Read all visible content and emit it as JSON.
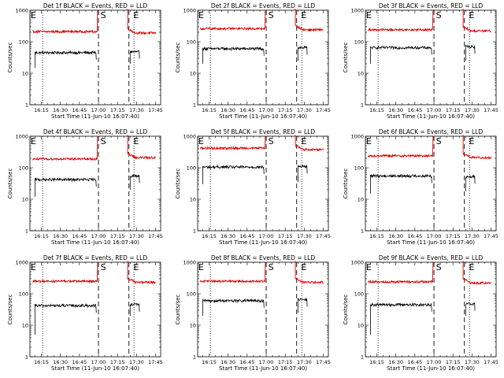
{
  "chart_data": [
    {
      "type": "line",
      "title": "Det 1f BLACK = Events, RED = LLD",
      "xlabel": "Start Time (11-Jun-10 16:07:40)",
      "ylabel": "Counts/sec",
      "xticks": [
        "16:15",
        "16:30",
        "16:45",
        "17:00",
        "17:15",
        "17:30",
        "17:45"
      ],
      "yscale": "log",
      "ylim": [
        1,
        1000
      ],
      "yticks": [
        "1",
        "10",
        "100",
        "1000"
      ],
      "markers": [
        {
          "label": "E",
          "time": "16:06"
        },
        {
          "label": "S",
          "time": "17:01"
        },
        {
          "label": "E",
          "time": "17:27"
        }
      ],
      "series": [
        {
          "color": "#000000",
          "segments": [
            {
              "x": [
                "16:10",
                "16:58"
              ],
              "level": 45,
              "start": 15
            },
            {
              "x": [
                "17:25",
                "17:32"
              ],
              "level": 48,
              "start": 20
            }
          ]
        },
        {
          "color": "#e00000",
          "segments": [
            {
              "x": [
                "16:08",
                "16:59"
              ],
              "level": 210,
              "rise": 1100
            },
            {
              "x": [
                "17:23",
                "17:45"
              ],
              "level": 190,
              "start": 1100
            }
          ]
        }
      ]
    },
    {
      "type": "line",
      "title": "Det 2f BLACK = Events, RED = LLD",
      "xlabel": "Start Time (11-Jun-10 16:07:40)",
      "ylabel": "Counts/sec",
      "xticks": [
        "16:15",
        "16:30",
        "16:45",
        "17:00",
        "17:15",
        "17:30",
        "17:45"
      ],
      "yscale": "log",
      "ylim": [
        1,
        1000
      ],
      "yticks": [
        "1",
        "10",
        "100",
        "1000"
      ],
      "markers": [
        {
          "label": "E",
          "time": "16:06"
        },
        {
          "label": "S",
          "time": "17:01"
        },
        {
          "label": "E",
          "time": "17:27"
        }
      ],
      "series": [
        {
          "color": "#000000",
          "segments": [
            {
              "x": [
                "16:10",
                "16:58"
              ],
              "level": 60,
              "start": 20
            },
            {
              "x": [
                "17:25",
                "17:32"
              ],
              "level": 65,
              "start": 25
            }
          ]
        },
        {
          "color": "#e00000",
          "segments": [
            {
              "x": [
                "16:08",
                "16:59"
              ],
              "level": 260,
              "rise": 1100
            },
            {
              "x": [
                "17:23",
                "17:45"
              ],
              "level": 240,
              "start": 1100
            }
          ]
        }
      ]
    },
    {
      "type": "line",
      "title": "Det 3f BLACK = Events, RED = LLD",
      "xlabel": "Start Time (11-Jun-10 16:07:40)",
      "ylabel": "Counts/sec",
      "xticks": [
        "16:15",
        "16:30",
        "16:45",
        "17:00",
        "17:15",
        "17:30",
        "17:45"
      ],
      "yscale": "log",
      "ylim": [
        1,
        1000
      ],
      "yticks": [
        "1",
        "10",
        "100",
        "1000"
      ],
      "markers": [
        {
          "label": "E",
          "time": "16:06"
        },
        {
          "label": "S",
          "time": "17:01"
        },
        {
          "label": "E",
          "time": "17:27"
        }
      ],
      "series": [
        {
          "color": "#000000",
          "segments": [
            {
              "x": [
                "16:10",
                "16:58"
              ],
              "level": 65,
              "start": 20
            },
            {
              "x": [
                "17:25",
                "17:32"
              ],
              "level": 70,
              "start": 25
            }
          ]
        },
        {
          "color": "#e00000",
          "segments": [
            {
              "x": [
                "16:08",
                "16:59"
              ],
              "level": 240,
              "rise": 1100
            },
            {
              "x": [
                "17:23",
                "17:45"
              ],
              "level": 220,
              "start": 1100
            }
          ]
        }
      ]
    },
    {
      "type": "line",
      "title": "Det 4f BLACK = Events, RED = LLD",
      "xlabel": "Start Time (11-Jun-10 16:07:40)",
      "ylabel": "Counts/sec",
      "xticks": [
        "16:15",
        "16:30",
        "16:45",
        "17:00",
        "17:15",
        "17:30",
        "17:45"
      ],
      "yscale": "log",
      "ylim": [
        1,
        1000
      ],
      "yticks": [
        "1",
        "10",
        "100",
        "1000"
      ],
      "markers": [
        {
          "label": "E",
          "time": "16:06"
        },
        {
          "label": "S",
          "time": "17:01"
        },
        {
          "label": "E",
          "time": "17:27"
        }
      ],
      "series": [
        {
          "color": "#000000",
          "segments": [
            {
              "x": [
                "16:10",
                "16:58"
              ],
              "level": 42,
              "start": 12
            },
            {
              "x": [
                "17:25",
                "17:32"
              ],
              "level": 55,
              "start": 20
            }
          ]
        },
        {
          "color": "#e00000",
          "segments": [
            {
              "x": [
                "16:08",
                "16:59"
              ],
              "level": 190,
              "rise": 1100
            },
            {
              "x": [
                "17:23",
                "17:45"
              ],
              "level": 210,
              "start": 1100
            }
          ]
        }
      ]
    },
    {
      "type": "line",
      "title": "Det 5f BLACK = Events, RED = LLD",
      "xlabel": "Start Time (11-Jun-10 16:07:40)",
      "ylabel": "Counts/sec",
      "xticks": [
        "16:15",
        "16:30",
        "16:45",
        "17:00",
        "17:15",
        "17:30",
        "17:45"
      ],
      "yscale": "log",
      "ylim": [
        1,
        1000
      ],
      "yticks": [
        "1",
        "10",
        "100",
        "1000"
      ],
      "markers": [
        {
          "label": "E",
          "time": "16:06"
        },
        {
          "label": "S",
          "time": "17:01"
        },
        {
          "label": "E",
          "time": "17:27"
        }
      ],
      "series": [
        {
          "color": "#000000",
          "segments": [
            {
              "x": [
                "16:10",
                "16:58"
              ],
              "level": 105,
              "start": 30
            },
            {
              "x": [
                "17:25",
                "17:32"
              ],
              "level": 110,
              "start": 35
            }
          ]
        },
        {
          "color": "#e00000",
          "segments": [
            {
              "x": [
                "16:08",
                "16:59"
              ],
              "level": 420,
              "rise": 1100
            },
            {
              "x": [
                "17:23",
                "17:45"
              ],
              "level": 380,
              "start": 1100
            }
          ]
        }
      ]
    },
    {
      "type": "line",
      "title": "Det 6f BLACK = Events, RED = LLD",
      "xlabel": "Start Time (11-Jun-10 16:07:40)",
      "ylabel": "Counts/sec",
      "xticks": [
        "16:15",
        "16:30",
        "16:45",
        "17:00",
        "17:15",
        "17:30",
        "17:45"
      ],
      "yscale": "log",
      "ylim": [
        1,
        1000
      ],
      "yticks": [
        "1",
        "10",
        "100",
        "1000"
      ],
      "markers": [
        {
          "label": "E",
          "time": "16:06"
        },
        {
          "label": "S",
          "time": "17:01"
        },
        {
          "label": "E",
          "time": "17:27"
        }
      ],
      "series": [
        {
          "color": "#000000",
          "segments": [
            {
              "x": [
                "16:10",
                "16:58"
              ],
              "level": 55,
              "start": 15
            },
            {
              "x": [
                "17:25",
                "17:32"
              ],
              "level": 52,
              "start": 18
            }
          ]
        },
        {
          "color": "#e00000",
          "segments": [
            {
              "x": [
                "16:08",
                "16:59"
              ],
              "level": 240,
              "rise": 1100
            },
            {
              "x": [
                "17:23",
                "17:45"
              ],
              "level": 210,
              "start": 1100
            }
          ]
        }
      ]
    },
    {
      "type": "line",
      "title": "Det 7f BLACK = Events, RED = LLD",
      "xlabel": "Start Time (11-Jun-10 16:07:40)",
      "ylabel": "Counts/sec",
      "xticks": [
        "16:15",
        "16:30",
        "16:45",
        "17:00",
        "17:15",
        "17:30",
        "17:45"
      ],
      "yscale": "log",
      "ylim": [
        1,
        1000
      ],
      "yticks": [
        "1",
        "10",
        "100",
        "1000"
      ],
      "markers": [
        {
          "label": "E",
          "time": "16:06"
        },
        {
          "label": "S",
          "time": "17:01"
        },
        {
          "label": "E",
          "time": "17:27"
        }
      ],
      "series": [
        {
          "color": "#000000",
          "segments": [
            {
              "x": [
                "16:10",
                "16:58"
              ],
              "level": 42,
              "start": 5
            },
            {
              "x": [
                "17:25",
                "17:32"
              ],
              "level": 45,
              "start": 20
            }
          ]
        },
        {
          "color": "#e00000",
          "segments": [
            {
              "x": [
                "16:08",
                "16:59"
              ],
              "level": 250,
              "rise": 1100
            },
            {
              "x": [
                "17:23",
                "17:45"
              ],
              "level": 230,
              "start": 1100
            }
          ]
        }
      ]
    },
    {
      "type": "line",
      "title": "Det 8f BLACK = Events, RED = LLD",
      "xlabel": "Start Time (11-Jun-10 16:07:40)",
      "ylabel": "Counts/sec",
      "xticks": [
        "16:15",
        "16:30",
        "16:45",
        "17:00",
        "17:15",
        "17:30",
        "17:45"
      ],
      "yscale": "log",
      "ylim": [
        1,
        1000
      ],
      "yticks": [
        "1",
        "10",
        "100",
        "1000"
      ],
      "markers": [
        {
          "label": "E",
          "time": "16:06"
        },
        {
          "label": "S",
          "time": "17:01"
        },
        {
          "label": "E",
          "time": "17:27"
        }
      ],
      "series": [
        {
          "color": "#000000",
          "segments": [
            {
              "x": [
                "16:10",
                "16:58"
              ],
              "level": 60,
              "start": 20
            },
            {
              "x": [
                "17:25",
                "17:32"
              ],
              "level": 65,
              "start": 25
            }
          ]
        },
        {
          "color": "#e00000",
          "segments": [
            {
              "x": [
                "16:08",
                "16:59"
              ],
              "level": 250,
              "rise": 1100
            },
            {
              "x": [
                "17:23",
                "17:45"
              ],
              "level": 230,
              "start": 1100
            }
          ]
        }
      ]
    },
    {
      "type": "line",
      "title": "Det 9f BLACK = Events, RED = LLD",
      "xlabel": "Start Time (11-Jun-10 16:07:40)",
      "ylabel": "Counts/sec",
      "xticks": [
        "16:15",
        "16:30",
        "16:45",
        "17:00",
        "17:15",
        "17:30",
        "17:45"
      ],
      "yscale": "log",
      "ylim": [
        1,
        1000
      ],
      "yticks": [
        "1",
        "10",
        "100",
        "1000"
      ],
      "markers": [
        {
          "label": "E",
          "time": "16:06"
        },
        {
          "label": "S",
          "time": "17:01"
        },
        {
          "label": "E",
          "time": "17:27"
        }
      ],
      "series": [
        {
          "color": "#000000",
          "segments": [
            {
              "x": [
                "16:10",
                "16:58"
              ],
              "level": 45,
              "start": 5
            },
            {
              "x": [
                "17:25",
                "17:32"
              ],
              "level": 48,
              "start": 20
            }
          ]
        },
        {
          "color": "#e00000",
          "segments": [
            {
              "x": [
                "16:08",
                "16:59"
              ],
              "level": 240,
              "rise": 1100
            },
            {
              "x": [
                "17:23",
                "17:45"
              ],
              "level": 220,
              "start": 1100
            }
          ]
        }
      ]
    }
  ]
}
